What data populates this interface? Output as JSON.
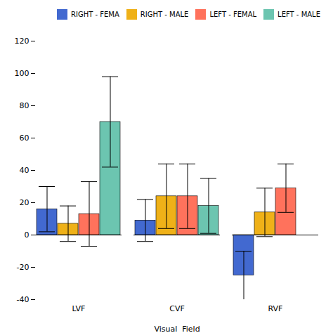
{
  "chart_data": {
    "type": "bar",
    "categories": [
      "LVF",
      "CVF",
      "RVF"
    ],
    "series": [
      {
        "name": "RIGHT - FEMA",
        "values": [
          16,
          9,
          -25
        ],
        "errors": [
          14,
          13,
          15
        ]
      },
      {
        "name": "RIGHT - MALE",
        "values": [
          7,
          24,
          14
        ],
        "errors": [
          11,
          20,
          15
        ]
      },
      {
        "name": "LEFT - FEMAL",
        "values": [
          13,
          24,
          29
        ],
        "errors": [
          20,
          20,
          15
        ]
      },
      {
        "name": "LEFT - MALE",
        "values": [
          70,
          18,
          0
        ],
        "errors": [
          28,
          17,
          0
        ]
      }
    ],
    "xlabel": "Visual  Field",
    "ylim": [
      -40,
      120
    ],
    "yticks": [
      -40,
      -20,
      0,
      20,
      40,
      60,
      80,
      100,
      120
    ],
    "legend": "upper right"
  }
}
